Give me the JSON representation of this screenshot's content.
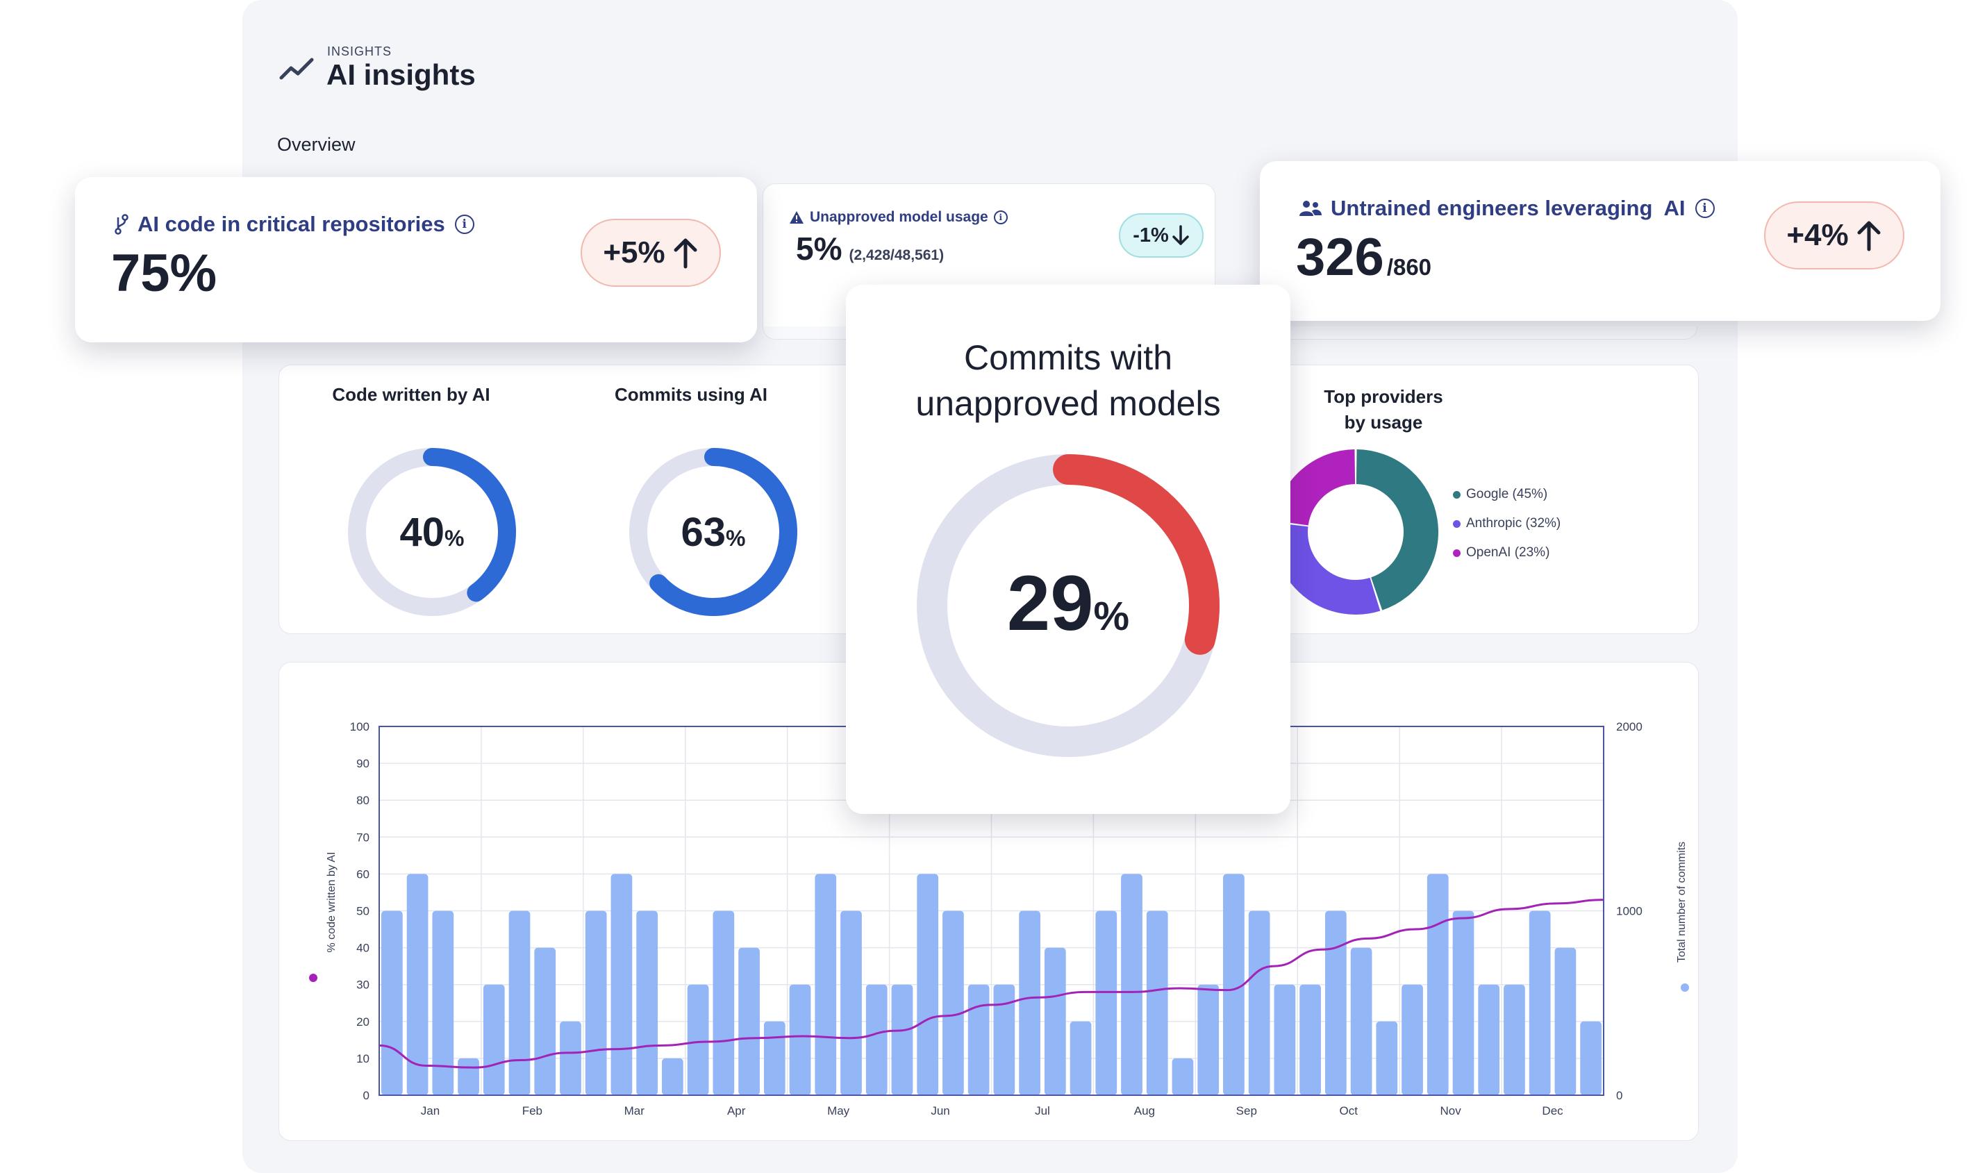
{
  "header": {
    "eyebrow": "INSIGHTS",
    "title": "AI insights",
    "section": "Overview"
  },
  "kpis": {
    "critical_repos": {
      "label": "AI code in critical repositories",
      "value": "75%",
      "change": "+5%",
      "direction": "up"
    },
    "unapproved_usage": {
      "label": "Unapproved model usage",
      "value": "5%",
      "detail": "(2,428/48,561)",
      "change": "-1%",
      "direction": "down"
    },
    "untrained_engineers": {
      "label": "Untrained engineers leveraging  AI",
      "value": "326",
      "total": "/860",
      "change": "+4%",
      "direction": "up"
    }
  },
  "donuts": {
    "code_written": {
      "title": "Code written by AI",
      "value": 40,
      "value_text": "40",
      "unit": "%",
      "color": "#2d6ad6"
    },
    "commits_ai": {
      "title": "Commits using AI",
      "value": 63,
      "value_text": "63",
      "unit": "%",
      "color": "#2d6ad6"
    },
    "unapproved_commits": {
      "title_line1": "Commits with",
      "title_line2": "unapproved models",
      "value": 29,
      "value_text": "29",
      "unit": "%",
      "color": "#e04848"
    }
  },
  "providers": {
    "title_line1": "Top providers",
    "title_line2": "by usage",
    "items": [
      {
        "label": "Google (45%)",
        "share": 45,
        "color": "#2f7a82"
      },
      {
        "label": "Anthropic (32%)",
        "share": 32,
        "color": "#6f52e6"
      },
      {
        "label": "OpenAI (23%)",
        "share": 23,
        "color": "#b022bd"
      }
    ]
  },
  "colors": {
    "track": "#dfe2ee",
    "bar": "#93b6f6",
    "line": "#a323b7",
    "axis": "#4a55a8"
  },
  "chart_data": {
    "type": "bar",
    "title": "",
    "months": [
      "Jan",
      "Feb",
      "Mar",
      "Apr",
      "May",
      "Jun",
      "Jul",
      "Aug",
      "Sep",
      "Oct",
      "Nov",
      "Dec"
    ],
    "series": [
      {
        "name": "% code written by AI",
        "axis": "left",
        "kind": "bar",
        "values": [
          50,
          60,
          50,
          10,
          30,
          50,
          40,
          20,
          50,
          60,
          50,
          10,
          30,
          50,
          40,
          20,
          30,
          60,
          50,
          30,
          30,
          60,
          50,
          30,
          30,
          50,
          40,
          20,
          50,
          60,
          50,
          10,
          30,
          60,
          50,
          30,
          30,
          50,
          40,
          20,
          30,
          60,
          50,
          30,
          30,
          50,
          40,
          20
        ]
      },
      {
        "name": "Total number of commits",
        "axis": "right",
        "kind": "line",
        "values": [
          270,
          160,
          150,
          190,
          230,
          250,
          270,
          290,
          310,
          320,
          310,
          350,
          430,
          490,
          530,
          560,
          560,
          580,
          570,
          700,
          790,
          850,
          900,
          960,
          1010,
          1040,
          1060
        ]
      }
    ],
    "ylabel": "% code written by AI",
    "y2label": "Total number of commits",
    "ylim": [
      0,
      100
    ],
    "y2lim": [
      0,
      2000
    ],
    "yticks": [
      "0",
      "10",
      "20",
      "30",
      "40",
      "50",
      "60",
      "70",
      "80",
      "90",
      "100"
    ],
    "y2ticks": [
      "0",
      "1000",
      "2000"
    ]
  }
}
